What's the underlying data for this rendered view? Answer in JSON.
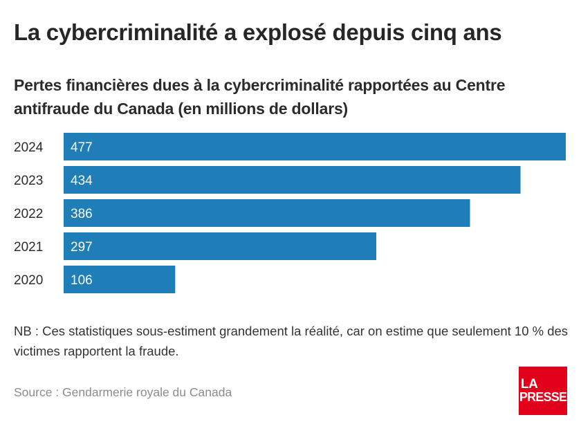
{
  "title": "La cybercriminalité a explosé depuis cinq ans",
  "subtitle": "Pertes financières dues à la cybercriminalité rapportées au Centre antifraude du Canada (en millions de dollars)",
  "note": "NB : Ces statistiques sous-estiment grandement la réalité, car on estime que seulement 10 % des victimes rapportent la fraude.",
  "source": "Source : Gendarmerie royale du Canada",
  "logo": {
    "line1": "LA",
    "line2": "PRESSE"
  },
  "colors": {
    "bar": "#1f7eb8",
    "bar_label": "#ffffff",
    "logo": "#e3001b"
  },
  "chart_data": {
    "type": "bar",
    "orientation": "horizontal",
    "categories": [
      "2024",
      "2023",
      "2022",
      "2021",
      "2020"
    ],
    "values": [
      477,
      434,
      386,
      297,
      106
    ],
    "unit": "millions de dollars",
    "xlim": [
      0,
      477
    ],
    "grid": false,
    "legend": "none"
  }
}
